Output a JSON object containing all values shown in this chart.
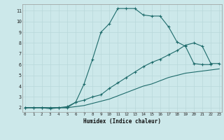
{
  "xlabel": "Humidex (Indice chaleur)",
  "background_color": "#cce8ea",
  "grid_color": "#b8d8da",
  "line_color": "#1e6b6b",
  "line1_x": [
    0,
    1,
    2,
    3,
    4,
    5,
    6,
    7,
    8,
    9,
    10,
    11,
    12,
    13,
    14,
    15,
    16,
    17,
    18,
    19,
    20,
    21,
    22
  ],
  "line1_y": [
    2,
    2,
    2,
    2,
    2,
    2,
    2.5,
    4.2,
    6.5,
    9,
    9.8,
    11.2,
    11.2,
    11.2,
    10.6,
    10.5,
    10.5,
    9.5,
    8.1,
    7.7,
    6.1,
    6.0,
    6.0
  ],
  "line2_x": [
    0,
    1,
    2,
    3,
    4,
    5,
    6,
    7,
    8,
    9,
    10,
    11,
    12,
    13,
    14,
    15,
    16,
    17,
    18,
    19,
    20,
    21,
    22,
    23
  ],
  "line2_y": [
    2,
    2,
    2,
    1.9,
    2.0,
    2.1,
    2.5,
    2.7,
    3.0,
    3.2,
    3.8,
    4.3,
    4.8,
    5.3,
    5.8,
    6.2,
    6.5,
    6.9,
    7.3,
    7.8,
    8.0,
    7.7,
    6.1,
    6.1
  ],
  "line3_x": [
    0,
    1,
    2,
    3,
    4,
    5,
    6,
    7,
    8,
    9,
    10,
    11,
    12,
    13,
    14,
    15,
    16,
    17,
    18,
    19,
    20,
    21,
    22,
    23
  ],
  "line3_y": [
    2,
    2,
    2,
    2,
    2,
    2,
    2.1,
    2.2,
    2.4,
    2.6,
    2.8,
    3.1,
    3.4,
    3.7,
    4.0,
    4.2,
    4.5,
    4.8,
    5.0,
    5.2,
    5.3,
    5.4,
    5.5,
    5.6
  ],
  "yticks": [
    2,
    3,
    4,
    5,
    6,
    7,
    8,
    9,
    10,
    11
  ],
  "xticks": [
    0,
    1,
    2,
    3,
    4,
    5,
    6,
    7,
    8,
    9,
    10,
    11,
    12,
    13,
    14,
    15,
    16,
    17,
    18,
    19,
    20,
    21,
    22,
    23
  ],
  "ylim": [
    1.6,
    11.6
  ],
  "xlim": [
    -0.3,
    23.3
  ]
}
